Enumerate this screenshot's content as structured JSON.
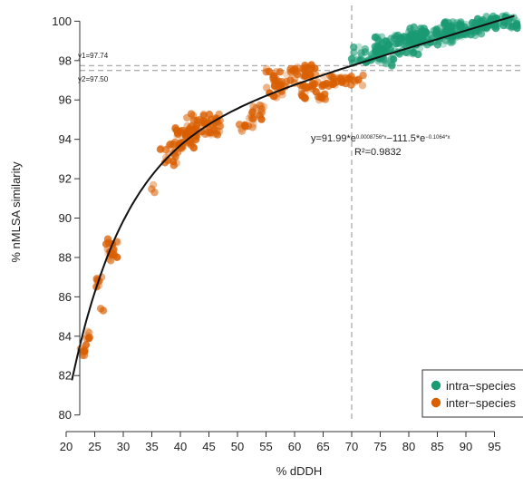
{
  "chart_data": {
    "type": "scatter",
    "xlabel": "% dDDH",
    "ylabel": "% nMLSA similarity",
    "xlim": [
      20,
      100
    ],
    "ylim": [
      79.8,
      100.8
    ],
    "xticks": [
      20,
      25,
      30,
      35,
      40,
      45,
      50,
      55,
      60,
      65,
      70,
      75,
      80,
      85,
      90,
      95
    ],
    "yticks": [
      80,
      82,
      84,
      86,
      88,
      90,
      92,
      94,
      96,
      98,
      100
    ],
    "grid": false,
    "legend": {
      "placement": "bottom-right",
      "entries": [
        {
          "label": "intra−species",
          "color": "#1a9a73"
        },
        {
          "label": "inter−species",
          "color": "#d95f02"
        }
      ]
    },
    "reference_lines": {
      "y1": {
        "label": "y1=97.74",
        "value": 97.74
      },
      "y2": {
        "label": "y2=97.50",
        "value": 97.5
      },
      "x": {
        "value": 70
      }
    },
    "fit": {
      "equation": {
        "prefix": "y=91.99*e",
        "exp1": "0.0008756*x",
        "middle": "−111.5*e",
        "exp2": "−0.1064*x"
      },
      "r2": "R²=0.9832",
      "color": "#111111",
      "params": {
        "a": 91.99,
        "b": 0.0008756,
        "c": 111.5,
        "d": 0.1064
      },
      "x_range": [
        21,
        98.5
      ]
    },
    "series": [
      {
        "name": "intra−species",
        "color": "#1a9a73",
        "clusters": [
          {
            "x": [
              70,
              76
            ],
            "y": [
              97.8,
              98.8
            ],
            "n": 45
          },
          {
            "x": [
              74,
              82
            ],
            "y": [
              98.3,
              99.3
            ],
            "n": 70
          },
          {
            "x": [
              80,
              88
            ],
            "y": [
              98.8,
              99.7
            ],
            "n": 90
          },
          {
            "x": [
              86,
              94
            ],
            "y": [
              99.2,
              100.0
            ],
            "n": 80
          },
          {
            "x": [
              92,
              99
            ],
            "y": [
              99.6,
              100.3
            ],
            "n": 55
          },
          {
            "x": [
              76,
              78
            ],
            "y": [
              97.7,
              98.1
            ],
            "n": 6
          }
        ]
      },
      {
        "name": "inter−species",
        "color": "#d95f02",
        "clusters": [
          {
            "x": [
              22.5,
              23.5
            ],
            "y": [
              83.0,
              83.6
            ],
            "n": 8
          },
          {
            "x": [
              23.5,
              24.5
            ],
            "y": [
              83.8,
              84.3
            ],
            "n": 6
          },
          {
            "x": [
              25.0,
              26.5
            ],
            "y": [
              86.5,
              87.0
            ],
            "n": 8
          },
          {
            "x": [
              26.0,
              26.8
            ],
            "y": [
              85.2,
              85.5
            ],
            "n": 3
          },
          {
            "x": [
              27.0,
              29.5
            ],
            "y": [
              87.8,
              89.0
            ],
            "n": 22
          },
          {
            "x": [
              34.5,
              35.5
            ],
            "y": [
              91.3,
              91.7
            ],
            "n": 3
          },
          {
            "x": [
              36.5,
              40.0
            ],
            "y": [
              92.6,
              93.8
            ],
            "n": 25
          },
          {
            "x": [
              39.0,
              43.0
            ],
            "y": [
              93.5,
              94.6
            ],
            "n": 45
          },
          {
            "x": [
              41.0,
              47.0
            ],
            "y": [
              94.2,
              95.3
            ],
            "n": 60
          },
          {
            "x": [
              50.0,
              53.0
            ],
            "y": [
              94.4,
              94.8
            ],
            "n": 10
          },
          {
            "x": [
              52.0,
              55.0
            ],
            "y": [
              95.0,
              95.8
            ],
            "n": 18
          },
          {
            "x": [
              55.0,
              60.0
            ],
            "y": [
              96.5,
              97.6
            ],
            "n": 35
          },
          {
            "x": [
              60.0,
              64.0
            ],
            "y": [
              97.0,
              97.8
            ],
            "n": 25
          },
          {
            "x": [
              61.0,
              66.0
            ],
            "y": [
              96.0,
              97.0
            ],
            "n": 35
          },
          {
            "x": [
              65.0,
              72.0
            ],
            "y": [
              96.7,
              97.3
            ],
            "n": 40
          },
          {
            "x": [
              55.0,
              58.0
            ],
            "y": [
              96.0,
              96.6
            ],
            "n": 8
          }
        ]
      }
    ]
  }
}
